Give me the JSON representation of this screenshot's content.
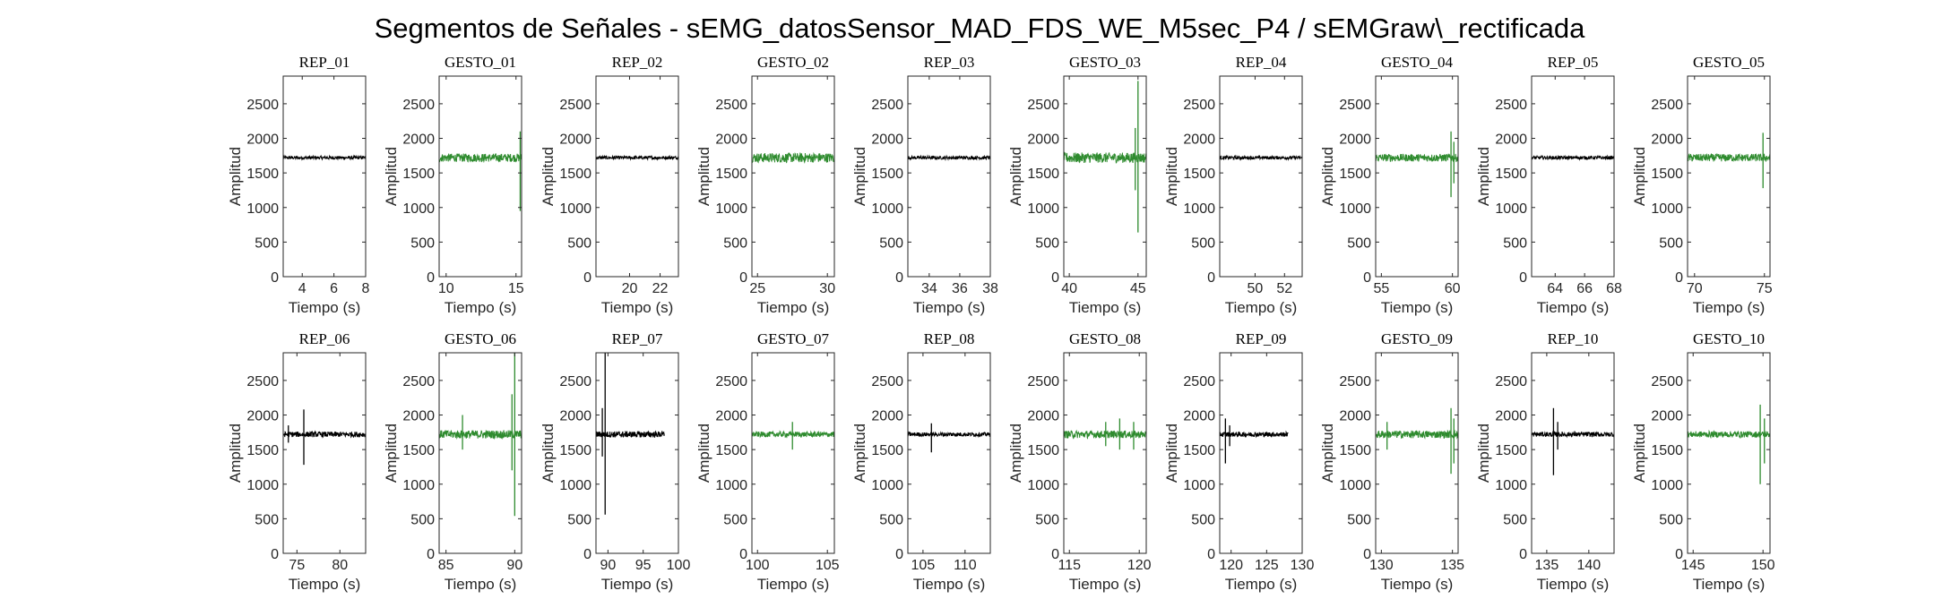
{
  "figure": {
    "title": "Segmentos de Señales - sEMG_datosSensor_MAD_FDS_WE_M5sec_P4 / sEMGraw\\_rectificada"
  },
  "colors": {
    "rep": "#000000",
    "gesto": "#2e8b2e",
    "axis": "#262626"
  },
  "chart_data": [
    {
      "type": "line",
      "title": "REP_01",
      "xlabel": "Tiempo (s)",
      "ylabel": "Amplitud",
      "xlim": [
        2.8,
        8
      ],
      "ylim": [
        0,
        2900
      ],
      "xticks": [
        4,
        6,
        8
      ],
      "yticks": [
        0,
        500,
        1000,
        1500,
        2000,
        2500
      ],
      "series": [
        {
          "kind": "rep",
          "baseline": 1720,
          "noise": 25,
          "x": [
            2.8,
            8
          ],
          "y": [
            1720,
            1720
          ],
          "spikes": []
        }
      ]
    },
    {
      "type": "line",
      "title": "GESTO_01",
      "xlabel": "Tiempo (s)",
      "ylabel": "Amplitud",
      "xlim": [
        9.5,
        15.4
      ],
      "ylim": [
        0,
        2900
      ],
      "xticks": [
        10,
        15
      ],
      "yticks": [
        0,
        500,
        1000,
        1500,
        2000,
        2500
      ],
      "series": [
        {
          "kind": "gesto",
          "baseline": 1720,
          "noise": 60,
          "x": [
            9.5,
            15.4
          ],
          "y": [
            1720,
            1720
          ],
          "spikes": [
            [
              15.3,
              2100,
              950
            ]
          ]
        }
      ]
    },
    {
      "type": "line",
      "title": "REP_02",
      "xlabel": "Tiempo (s)",
      "ylabel": "Amplitud",
      "xlim": [
        17.8,
        23.2
      ],
      "ylim": [
        0,
        2900
      ],
      "xticks": [
        20,
        22
      ],
      "yticks": [
        0,
        500,
        1000,
        1500,
        2000,
        2500
      ],
      "series": [
        {
          "kind": "rep",
          "baseline": 1720,
          "noise": 25,
          "x": [
            17.8,
            23.2
          ],
          "y": [
            1720,
            1720
          ],
          "spikes": []
        }
      ]
    },
    {
      "type": "line",
      "title": "GESTO_02",
      "xlabel": "Tiempo (s)",
      "ylabel": "Amplitud",
      "xlim": [
        24.6,
        30.5
      ],
      "ylim": [
        0,
        2900
      ],
      "xticks": [
        25,
        30
      ],
      "yticks": [
        0,
        500,
        1000,
        1500,
        2000,
        2500
      ],
      "series": [
        {
          "kind": "gesto",
          "baseline": 1720,
          "noise": 70,
          "x": [
            24.6,
            30.5
          ],
          "y": [
            1720,
            1720
          ],
          "spikes": []
        }
      ]
    },
    {
      "type": "line",
      "title": "REP_03",
      "xlabel": "Tiempo (s)",
      "ylabel": "Amplitud",
      "xlim": [
        32.6,
        38
      ],
      "ylim": [
        0,
        2900
      ],
      "xticks": [
        34,
        36,
        38
      ],
      "yticks": [
        0,
        500,
        1000,
        1500,
        2000,
        2500
      ],
      "series": [
        {
          "kind": "rep",
          "baseline": 1720,
          "noise": 25,
          "x": [
            32.6,
            38
          ],
          "y": [
            1720,
            1720
          ],
          "spikes": []
        }
      ]
    },
    {
      "type": "line",
      "title": "GESTO_03",
      "xlabel": "Tiempo (s)",
      "ylabel": "Amplitud",
      "xlim": [
        39.6,
        45.6
      ],
      "ylim": [
        0,
        2900
      ],
      "xticks": [
        40,
        45
      ],
      "yticks": [
        0,
        500,
        1000,
        1500,
        2000,
        2500
      ],
      "series": [
        {
          "kind": "gesto",
          "baseline": 1720,
          "noise": 75,
          "x": [
            39.6,
            45.6
          ],
          "y": [
            1720,
            1720
          ],
          "spikes": [
            [
              45.0,
              2830,
              640
            ],
            [
              44.8,
              2150,
              1250
            ]
          ]
        }
      ]
    },
    {
      "type": "line",
      "title": "REP_04",
      "xlabel": "Tiempo (s)",
      "ylabel": "Amplitud",
      "xlim": [
        47.6,
        53.2
      ],
      "ylim": [
        0,
        2900
      ],
      "xticks": [
        50,
        52
      ],
      "yticks": [
        0,
        500,
        1000,
        1500,
        2000,
        2500
      ],
      "series": [
        {
          "kind": "rep",
          "baseline": 1720,
          "noise": 25,
          "x": [
            47.6,
            53.2
          ],
          "y": [
            1720,
            1720
          ],
          "spikes": []
        }
      ]
    },
    {
      "type": "line",
      "title": "GESTO_04",
      "xlabel": "Tiempo (s)",
      "ylabel": "Amplitud",
      "xlim": [
        54.6,
        60.4
      ],
      "ylim": [
        0,
        2900
      ],
      "xticks": [
        55,
        60
      ],
      "yticks": [
        0,
        500,
        1000,
        1500,
        2000,
        2500
      ],
      "series": [
        {
          "kind": "gesto",
          "baseline": 1720,
          "noise": 55,
          "x": [
            54.6,
            60.4
          ],
          "y": [
            1720,
            1720
          ],
          "spikes": [
            [
              59.9,
              2100,
              1150
            ],
            [
              60.1,
              1950,
              1350
            ]
          ]
        }
      ]
    },
    {
      "type": "line",
      "title": "REP_05",
      "xlabel": "Tiempo (s)",
      "ylabel": "Amplitud",
      "xlim": [
        62.4,
        68
      ],
      "ylim": [
        0,
        2900
      ],
      "xticks": [
        64,
        66,
        68
      ],
      "yticks": [
        0,
        500,
        1000,
        1500,
        2000,
        2500
      ],
      "series": [
        {
          "kind": "rep",
          "baseline": 1720,
          "noise": 25,
          "x": [
            62.4,
            68
          ],
          "y": [
            1720,
            1720
          ],
          "spikes": []
        }
      ]
    },
    {
      "type": "line",
      "title": "GESTO_05",
      "xlabel": "Tiempo (s)",
      "ylabel": "Amplitud",
      "xlim": [
        69.5,
        75.4
      ],
      "ylim": [
        0,
        2900
      ],
      "xticks": [
        70,
        75
      ],
      "yticks": [
        0,
        500,
        1000,
        1500,
        2000,
        2500
      ],
      "series": [
        {
          "kind": "gesto",
          "baseline": 1720,
          "noise": 55,
          "x": [
            69.5,
            75.4
          ],
          "y": [
            1720,
            1720
          ],
          "spikes": [
            [
              74.9,
              2080,
              1280
            ]
          ]
        }
      ]
    },
    {
      "type": "line",
      "title": "REP_06",
      "xlabel": "Tiempo (s)",
      "ylabel": "Amplitud",
      "xlim": [
        73.4,
        83
      ],
      "ylim": [
        0,
        2900
      ],
      "xticks": [
        75,
        80
      ],
      "yticks": [
        0,
        500,
        1000,
        1500,
        2000,
        2500
      ],
      "series": [
        {
          "kind": "rep",
          "baseline": 1720,
          "noise": 40,
          "x": [
            73.4,
            83
          ],
          "y": [
            1720,
            1720
          ],
          "spikes": [
            [
              75.8,
              2080,
              1280
            ],
            [
              74.0,
              1850,
              1600
            ]
          ]
        }
      ]
    },
    {
      "type": "line",
      "title": "GESTO_06",
      "xlabel": "Tiempo (s)",
      "ylabel": "Amplitud",
      "xlim": [
        84.5,
        90.5
      ],
      "ylim": [
        0,
        2900
      ],
      "xticks": [
        85,
        90
      ],
      "yticks": [
        0,
        500,
        1000,
        1500,
        2000,
        2500
      ],
      "series": [
        {
          "kind": "gesto",
          "baseline": 1720,
          "noise": 60,
          "x": [
            84.5,
            90.5
          ],
          "y": [
            1720,
            1720
          ],
          "spikes": [
            [
              86.2,
              2000,
              1500
            ],
            [
              90.0,
              2900,
              540
            ],
            [
              89.8,
              2300,
              1200
            ]
          ]
        }
      ]
    },
    {
      "type": "line",
      "title": "REP_07",
      "xlabel": "Tiempo (s)",
      "ylabel": "Amplitud",
      "xlim": [
        88.3,
        100
      ],
      "ylim": [
        0,
        2900
      ],
      "xticks": [
        90,
        95,
        100
      ],
      "yticks": [
        0,
        500,
        1000,
        1500,
        2000,
        2500
      ],
      "series": [
        {
          "kind": "rep",
          "baseline": 1720,
          "noise": 45,
          "x": [
            88.3,
            98
          ],
          "y": [
            1720,
            1720
          ],
          "spikes": [
            [
              89.6,
              2900,
              560
            ],
            [
              89.2,
              2100,
              1400
            ]
          ]
        }
      ]
    },
    {
      "type": "line",
      "title": "GESTO_07",
      "xlabel": "Tiempo (s)",
      "ylabel": "Amplitud",
      "xlim": [
        99.6,
        105.5
      ],
      "ylim": [
        0,
        2900
      ],
      "xticks": [
        100,
        105
      ],
      "yticks": [
        0,
        500,
        1000,
        1500,
        2000,
        2500
      ],
      "series": [
        {
          "kind": "gesto",
          "baseline": 1720,
          "noise": 40,
          "x": [
            99.6,
            105.5
          ],
          "y": [
            1720,
            1720
          ],
          "spikes": [
            [
              102.5,
              1900,
              1500
            ]
          ]
        }
      ]
    },
    {
      "type": "line",
      "title": "REP_08",
      "xlabel": "Tiempo (s)",
      "ylabel": "Amplitud",
      "xlim": [
        103.2,
        113
      ],
      "ylim": [
        0,
        2900
      ],
      "xticks": [
        105,
        110
      ],
      "yticks": [
        0,
        500,
        1000,
        1500,
        2000,
        2500
      ],
      "series": [
        {
          "kind": "rep",
          "baseline": 1720,
          "noise": 30,
          "x": [
            103.2,
            113
          ],
          "y": [
            1720,
            1720
          ],
          "spikes": [
            [
              106.0,
              1880,
              1460
            ]
          ]
        }
      ]
    },
    {
      "type": "line",
      "title": "GESTO_08",
      "xlabel": "Tiempo (s)",
      "ylabel": "Amplitud",
      "xlim": [
        114.6,
        120.5
      ],
      "ylim": [
        0,
        2900
      ],
      "xticks": [
        115,
        120
      ],
      "yticks": [
        0,
        500,
        1000,
        1500,
        2000,
        2500
      ],
      "series": [
        {
          "kind": "gesto",
          "baseline": 1720,
          "noise": 55,
          "x": [
            114.6,
            120.5
          ],
          "y": [
            1720,
            1720
          ],
          "spikes": [
            [
              117.6,
              1900,
              1550
            ],
            [
              118.6,
              1950,
              1500
            ],
            [
              119.6,
              1900,
              1500
            ]
          ]
        }
      ]
    },
    {
      "type": "line",
      "title": "REP_09",
      "xlabel": "Tiempo (s)",
      "ylabel": "Amplitud",
      "xlim": [
        118.4,
        130
      ],
      "ylim": [
        0,
        2900
      ],
      "xticks": [
        120,
        125,
        130
      ],
      "yticks": [
        0,
        500,
        1000,
        1500,
        2000,
        2500
      ],
      "series": [
        {
          "kind": "rep",
          "baseline": 1720,
          "noise": 35,
          "x": [
            118.4,
            128
          ],
          "y": [
            1720,
            1720
          ],
          "spikes": [
            [
              119.2,
              1950,
              1300
            ],
            [
              119.8,
              1850,
              1550
            ]
          ]
        }
      ]
    },
    {
      "type": "line",
      "title": "GESTO_09",
      "xlabel": "Tiempo (s)",
      "ylabel": "Amplitud",
      "xlim": [
        129.6,
        135.4
      ],
      "ylim": [
        0,
        2900
      ],
      "xticks": [
        130,
        135
      ],
      "yticks": [
        0,
        500,
        1000,
        1500,
        2000,
        2500
      ],
      "series": [
        {
          "kind": "gesto",
          "baseline": 1720,
          "noise": 55,
          "x": [
            129.6,
            135.4
          ],
          "y": [
            1720,
            1720
          ],
          "spikes": [
            [
              130.4,
              1900,
              1500
            ],
            [
              134.9,
              2100,
              1150
            ],
            [
              135.1,
              1950,
              1300
            ]
          ]
        }
      ]
    },
    {
      "type": "line",
      "title": "REP_10",
      "xlabel": "Tiempo (s)",
      "ylabel": "Amplitud",
      "xlim": [
        133.2,
        143
      ],
      "ylim": [
        0,
        2900
      ],
      "xticks": [
        135,
        140
      ],
      "yticks": [
        0,
        500,
        1000,
        1500,
        2000,
        2500
      ],
      "series": [
        {
          "kind": "rep",
          "baseline": 1720,
          "noise": 35,
          "x": [
            133.2,
            143
          ],
          "y": [
            1720,
            1720
          ],
          "spikes": [
            [
              135.8,
              2100,
              1130
            ],
            [
              136.3,
              1900,
              1500
            ]
          ]
        }
      ]
    },
    {
      "type": "line",
      "title": "GESTO_10",
      "xlabel": "Tiempo (s)",
      "ylabel": "Amplitud",
      "xlim": [
        144.6,
        150.5
      ],
      "ylim": [
        0,
        2900
      ],
      "xticks": [
        145,
        150
      ],
      "yticks": [
        0,
        500,
        1000,
        1500,
        2000,
        2500
      ],
      "series": [
        {
          "kind": "gesto",
          "baseline": 1720,
          "noise": 45,
          "x": [
            144.6,
            150.5
          ],
          "y": [
            1720,
            1720
          ],
          "spikes": [
            [
              149.8,
              2150,
              1000
            ],
            [
              150.1,
              1950,
              1300
            ]
          ]
        }
      ]
    }
  ]
}
